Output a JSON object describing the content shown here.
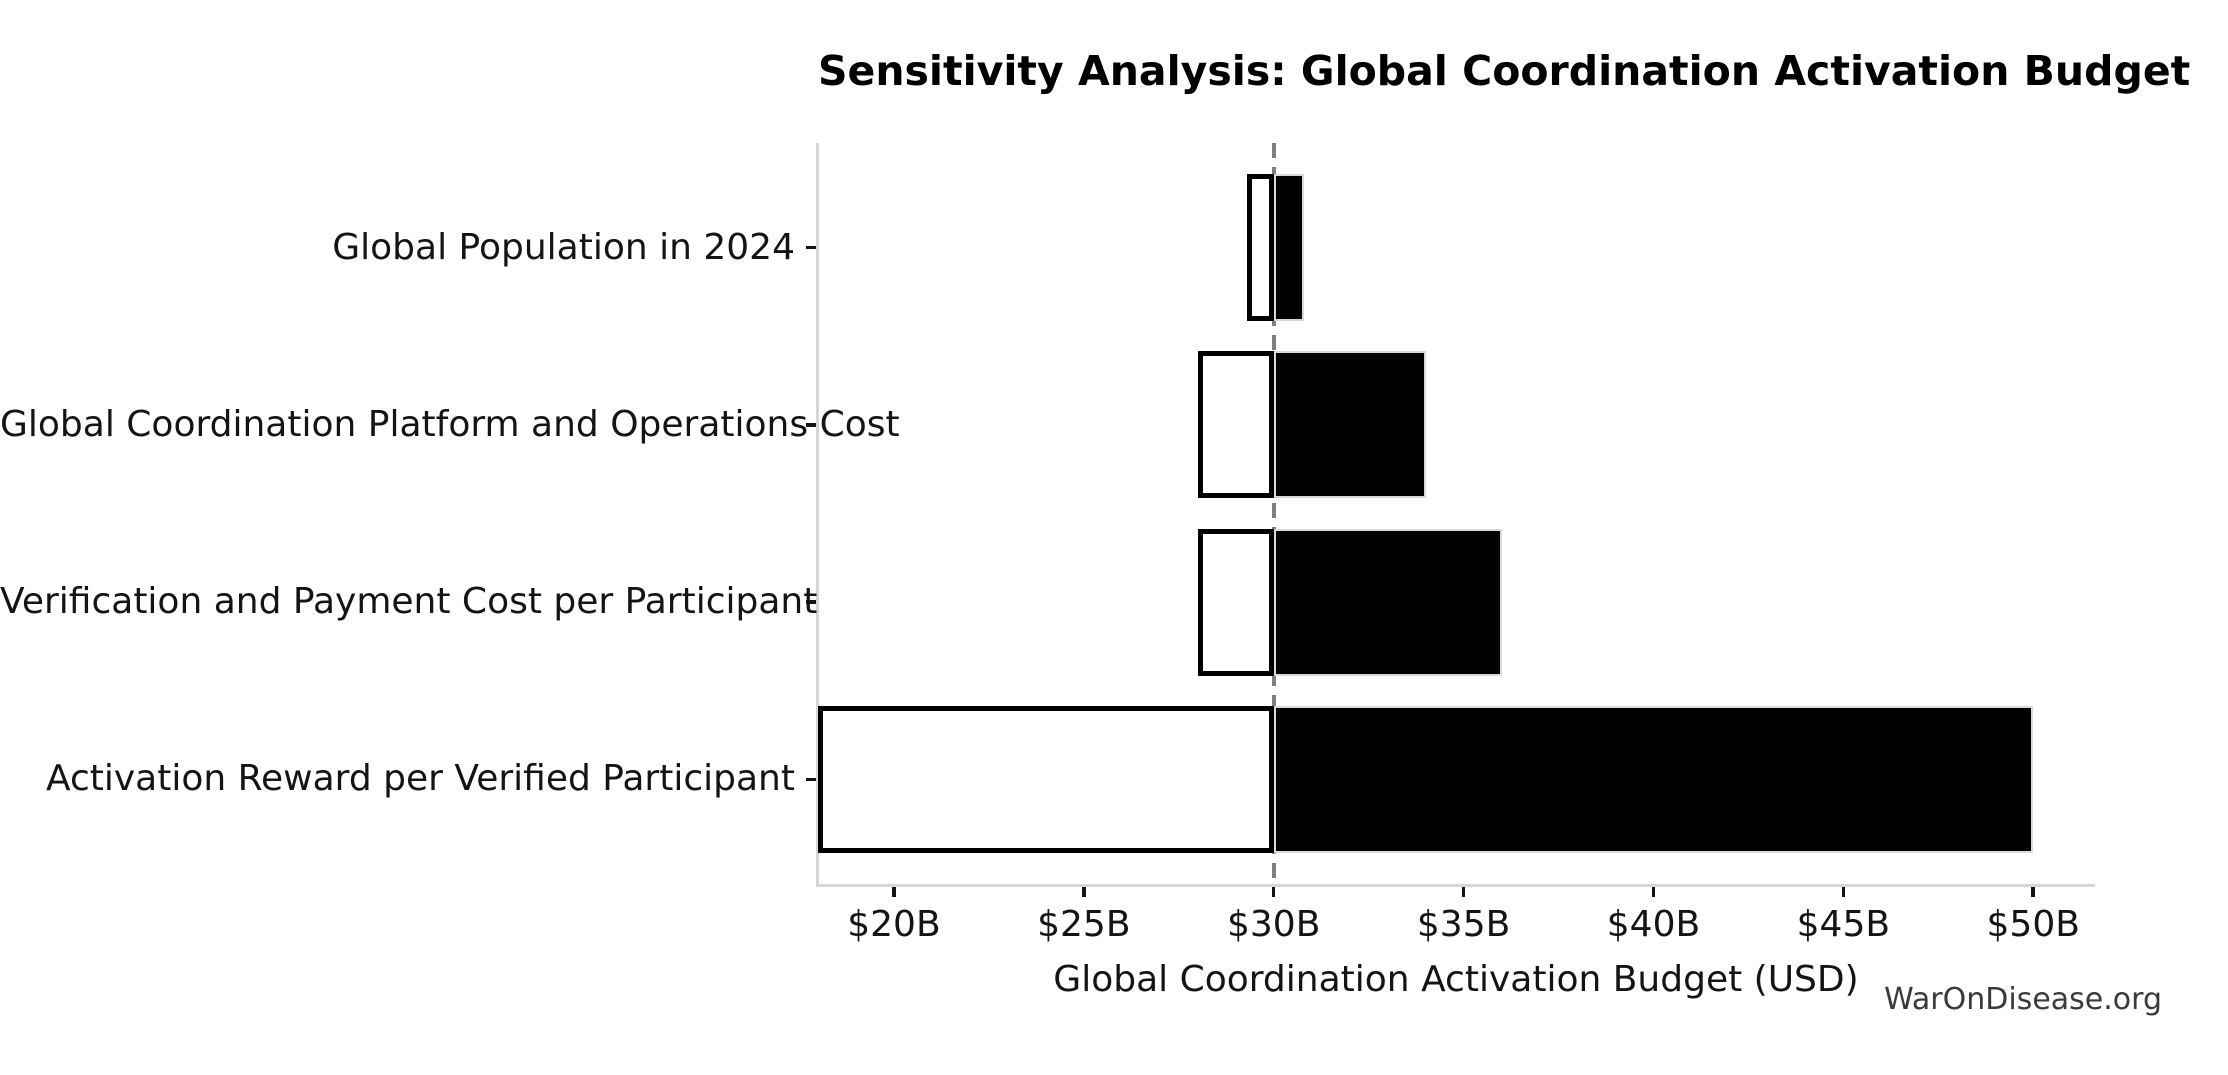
{
  "figure": {
    "watermark": "WarOnDisease.org"
  },
  "chart_data": {
    "type": "bar",
    "orientation": "horizontal",
    "title": "Sensitivity Analysis: Global Coordination Activation Budget",
    "xlabel": "Global Coordination Activation Budget (USD)",
    "ylabel": "",
    "baseline_value": 30,
    "xlim": [
      18,
      51.6
    ],
    "grid": false,
    "legend_position": "none",
    "x_ticks": [
      {
        "value": 20,
        "label": "$20B"
      },
      {
        "value": 25,
        "label": "$25B"
      },
      {
        "value": 30,
        "label": "$30B"
      },
      {
        "value": 35,
        "label": "$35B"
      },
      {
        "value": 40,
        "label": "$40B"
      },
      {
        "value": 45,
        "label": "$45B"
      },
      {
        "value": 50,
        "label": "$50B"
      }
    ],
    "categories": [
      "Global Population in 2024",
      "Global Coordination Platform and Operations Cost",
      "Verification and Payment Cost per Participant",
      "Activation Reward per Verified Participant"
    ],
    "series": [
      {
        "name": "low_estimate",
        "values": [
          29.3,
          28,
          28,
          18
        ]
      },
      {
        "name": "high_estimate",
        "values": [
          30.8,
          34,
          36,
          50
        ]
      }
    ],
    "styles": {
      "low_bar_fill": "#ffffff",
      "low_bar_edge": "#000000",
      "high_bar_fill": "#000000",
      "high_bar_edge": "#d9d9d9",
      "baseline_color": "#808080",
      "spine_color": "#d6d6d6",
      "tick_color": "#141414",
      "text_color": "#141414",
      "watermark_color": "#3a3a3a"
    }
  }
}
